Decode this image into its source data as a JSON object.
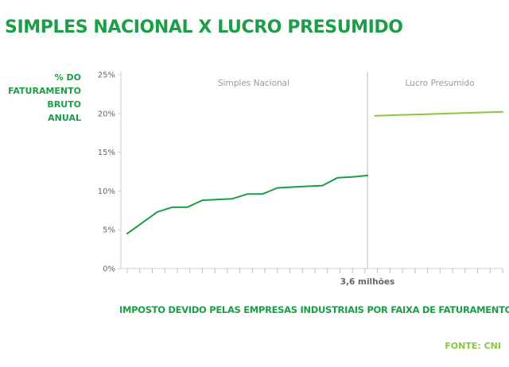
{
  "title": "SIMPLES NACIONAL X LUCRO PRESUMIDO",
  "source": "FONTE: CNI",
  "chart_data": {
    "type": "line",
    "title": "SIMPLES NACIONAL X LUCRO PRESUMIDO",
    "ylabel_lines": [
      "% DO",
      "FATURAMENTO",
      "BRUTO",
      "ANUAL"
    ],
    "xlabel": "IMPOSTO DEVIDO PELAS EMPRESAS INDUSTRIAIS POR FAIXA DE FATURAMENTO",
    "ylim": [
      0,
      25
    ],
    "yticks": [
      "0%",
      "5%",
      "10%",
      "15%",
      "20%",
      "25%"
    ],
    "ytick_values": [
      0,
      5,
      10,
      15,
      20,
      25
    ],
    "x_threshold_label": "3,6 milhões",
    "x_tick_count": 31,
    "regions": [
      "Simples Nacional",
      "Lucro Presumido"
    ],
    "grid": false,
    "series": [
      {
        "name": "Simples Nacional",
        "color": "#1a9e46",
        "points": [
          [
            0,
            4.5
          ],
          [
            1,
            5.9
          ],
          [
            2,
            7.3
          ],
          [
            3,
            7.9
          ],
          [
            4,
            7.9
          ],
          [
            5,
            8.8
          ],
          [
            6,
            8.9
          ],
          [
            7,
            9.0
          ],
          [
            8,
            9.6
          ],
          [
            9,
            9.6
          ],
          [
            10,
            10.4
          ],
          [
            11,
            10.5
          ],
          [
            12,
            10.6
          ],
          [
            13,
            10.7
          ],
          [
            14,
            11.7
          ],
          [
            15,
            11.8
          ],
          [
            16,
            12.0
          ]
        ]
      },
      {
        "name": "Lucro Presumido",
        "color": "#8cc63f",
        "points": [
          [
            16.5,
            19.7
          ],
          [
            25,
            20.2
          ]
        ]
      }
    ]
  }
}
